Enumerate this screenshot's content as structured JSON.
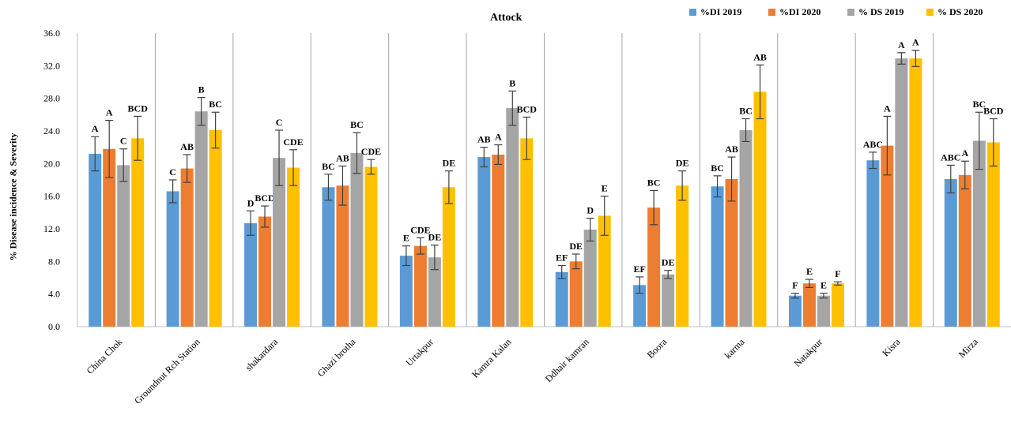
{
  "chart_data": {
    "type": "bar",
    "title": "Attock",
    "xlabel": "",
    "ylabel": "% Disease incidence & Severity",
    "ylim": [
      0,
      36
    ],
    "yticks": [
      "0.0",
      "4.0",
      "8.0",
      "12.0",
      "16.0",
      "20.0",
      "24.0",
      "28.0",
      "32.0",
      "36.0"
    ],
    "grid": false,
    "legend_position": "top-right",
    "categories": [
      "China Chok",
      "Groundnut Rch Station",
      "shakardara",
      "Ghazi brotha",
      "Urtakpur",
      "Kamra Kalan",
      "Ddhair kamran",
      "Boora",
      "karma",
      "Natakpur",
      "Kisra",
      "Mirza"
    ],
    "series": [
      {
        "name": "%DI 2019",
        "color": "#5b9bd5",
        "values": [
          21.2,
          16.6,
          12.7,
          17.1,
          8.7,
          20.8,
          6.7,
          5.1,
          17.2,
          3.8,
          20.4,
          18.1
        ],
        "errors": [
          2.1,
          1.4,
          1.5,
          1.6,
          1.2,
          1.2,
          0.8,
          1.0,
          1.3,
          0.3,
          1.0,
          1.7
        ],
        "labels": [
          "A",
          "C",
          "D",
          "BC",
          "E",
          "AB",
          "EF",
          "EF",
          "BC",
          "F",
          "ABC",
          "ABC"
        ]
      },
      {
        "name": "%DI 2020",
        "color": "#ed7d31",
        "values": [
          21.8,
          19.4,
          13.5,
          17.3,
          9.9,
          21.1,
          8.0,
          14.6,
          18.1,
          5.3,
          22.2,
          18.6
        ],
        "errors": [
          3.5,
          1.7,
          1.3,
          2.4,
          1.0,
          1.2,
          0.9,
          2.1,
          2.7,
          0.5,
          3.6,
          1.7
        ],
        "labels": [
          "A",
          "AB",
          "BCD",
          "AB",
          "CDE",
          "A",
          "DE",
          "BC",
          "AB",
          "E",
          "A",
          "A"
        ]
      },
      {
        "name": "% DS 2019",
        "color": "#a5a5a5",
        "values": [
          19.8,
          26.4,
          20.7,
          21.3,
          8.5,
          26.8,
          11.9,
          6.4,
          24.1,
          3.8,
          32.9,
          22.8
        ],
        "errors": [
          2.0,
          1.7,
          3.4,
          2.5,
          1.5,
          2.1,
          1.4,
          0.5,
          1.4,
          0.3,
          0.7,
          3.5
        ],
        "labels": [
          "C",
          "B",
          "C",
          "BC",
          "DE",
          "B",
          "D",
          "DE",
          "BC",
          "E",
          "A",
          "BC"
        ]
      },
      {
        "name": "% DS 2020",
        "color": "#ffc000",
        "values": [
          23.1,
          24.1,
          19.5,
          19.6,
          17.1,
          23.1,
          13.6,
          17.3,
          28.8,
          5.3,
          32.9,
          22.6
        ],
        "errors": [
          2.7,
          2.2,
          2.2,
          0.9,
          2.0,
          2.6,
          2.4,
          1.8,
          3.3,
          0.2,
          1.0,
          2.9
        ],
        "labels": [
          "BCD",
          "BC",
          "CDE",
          "CDE",
          "DE",
          "BCD",
          "E",
          "DE",
          "AB",
          "F",
          "A",
          "BCD"
        ]
      }
    ]
  }
}
